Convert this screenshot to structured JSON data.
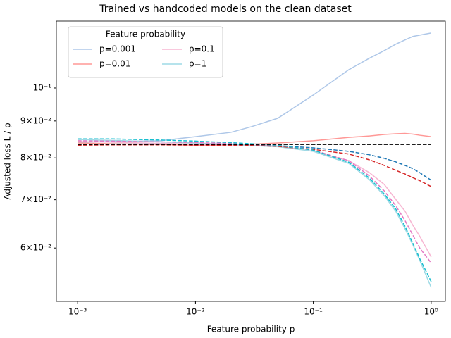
{
  "chart_data": {
    "type": "line",
    "title": "Trained vs handcoded models on the clean dataset",
    "xlabel": "Feature probability p",
    "ylabel": "Adjusted loss L / p",
    "xscale": "log",
    "yscale": "log",
    "xlim": [
      0.00066,
      1.32
    ],
    "ylim": [
      0.0506,
      0.1238
    ],
    "xticks": [
      {
        "value": 0.001,
        "label": "10⁻³"
      },
      {
        "value": 0.01,
        "label": "10⁻²"
      },
      {
        "value": 0.1,
        "label": "10⁻¹"
      },
      {
        "value": 1,
        "label": "10⁰"
      }
    ],
    "yticks": [
      {
        "value": 0.06,
        "label": "6×10⁻²"
      },
      {
        "value": 0.07,
        "label": "7×10⁻²"
      },
      {
        "value": 0.08,
        "label": "8×10⁻²"
      },
      {
        "value": 0.09,
        "label": "9×10⁻²"
      },
      {
        "value": 0.1,
        "label": "10⁻¹"
      }
    ],
    "legend_title": "Feature probability",
    "legend_loc": "upper left",
    "legend_ncol": 2,
    "x": [
      0.001,
      0.002,
      0.005,
      0.01,
      0.02,
      0.03,
      0.05,
      0.1,
      0.2,
      0.3,
      0.4,
      0.5,
      0.6,
      0.7,
      0.8,
      1
    ],
    "series": [
      {
        "name": "p=0.001",
        "color": "#aec7e8",
        "style": "solid",
        "values": [
          0.0841,
          0.0843,
          0.0845,
          0.0856,
          0.0868,
          0.0884,
          0.0908,
          0.0978,
          0.106,
          0.11,
          0.1127,
          0.115,
          0.1166,
          0.1179,
          0.1184,
          0.1192
        ]
      },
      {
        "name": "p=0.01",
        "color": "#ff9896",
        "style": "solid",
        "values": [
          0.0839,
          0.0837,
          0.0835,
          0.0833,
          0.0834,
          0.0836,
          0.0839,
          0.0845,
          0.0854,
          0.0858,
          0.0862,
          0.0864,
          0.0865,
          0.0863,
          0.086,
          0.0856
        ]
      },
      {
        "name": "p=0.1",
        "color": "#f7b6d2",
        "style": "solid",
        "values": [
          0.0843,
          0.0841,
          0.0838,
          0.0836,
          0.0834,
          0.0832,
          0.0831,
          0.0817,
          0.0793,
          0.0763,
          0.0735,
          0.0701,
          0.0675,
          0.0645,
          0.0623,
          0.0583
        ]
      },
      {
        "name": "p=1",
        "color": "#9edae5",
        "style": "solid",
        "values": [
          0.0848,
          0.0846,
          0.0842,
          0.0839,
          0.0835,
          0.0832,
          0.0829,
          0.0817,
          0.0786,
          0.0746,
          0.0709,
          0.0675,
          0.0638,
          0.0606,
          0.0577,
          0.0529
        ]
      },
      {
        "color": "#1f77b4",
        "style": "dashed",
        "values": [
          0.0835,
          0.0836,
          0.0836,
          0.0835,
          0.0835,
          0.0834,
          0.0832,
          0.0826,
          0.0817,
          0.0808,
          0.0799,
          0.079,
          0.0781,
          0.0773,
          0.0763,
          0.0745
        ]
      },
      {
        "color": "#d62728",
        "style": "dashed",
        "values": [
          0.0833,
          0.0834,
          0.0834,
          0.0833,
          0.0833,
          0.0832,
          0.083,
          0.0822,
          0.081,
          0.0795,
          0.0781,
          0.0769,
          0.076,
          0.0751,
          0.0744,
          0.073
        ]
      },
      {
        "color": "#e377c2",
        "style": "dashed",
        "values": [
          0.0845,
          0.0844,
          0.0842,
          0.084,
          0.0838,
          0.0836,
          0.0833,
          0.082,
          0.0793,
          0.0755,
          0.072,
          0.0687,
          0.0655,
          0.0625,
          0.06,
          0.0572
        ]
      },
      {
        "color": "#17becf",
        "style": "dashed",
        "values": [
          0.085,
          0.085,
          0.0847,
          0.0844,
          0.084,
          0.0837,
          0.0833,
          0.082,
          0.0789,
          0.075,
          0.0713,
          0.068,
          0.0643,
          0.0609,
          0.058,
          0.0539
        ]
      },
      {
        "color": "#000000",
        "style": "dashed",
        "values": [
          0.0835,
          0.0835,
          0.0835,
          0.0835,
          0.0835,
          0.0835,
          0.0835,
          0.0835,
          0.0835,
          0.0835,
          0.0835,
          0.0835,
          0.0835,
          0.0835,
          0.0835,
          0.0835
        ]
      }
    ]
  }
}
